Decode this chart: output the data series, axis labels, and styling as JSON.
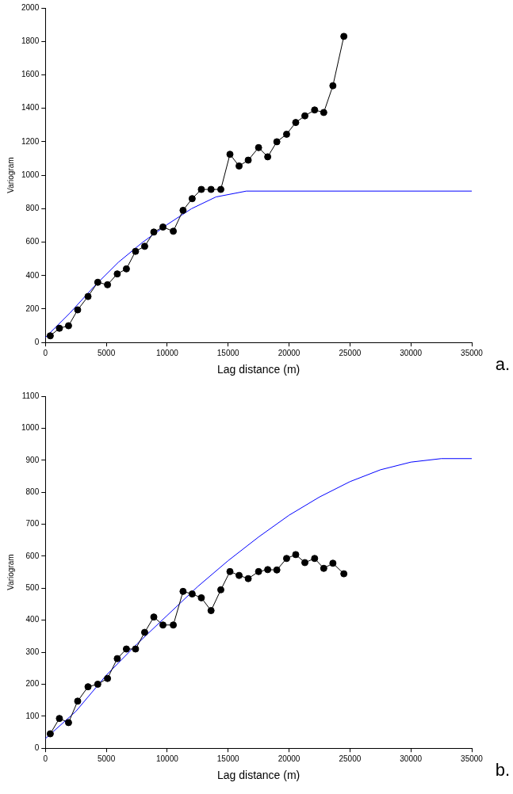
{
  "chart_data": [
    {
      "type": "line",
      "xlabel": "Lag distance (m)",
      "ylabel": "Variogram",
      "annotations": [
        "a."
      ],
      "xlim": [
        0,
        35000
      ],
      "ylim": [
        0,
        2000
      ],
      "xticks": [
        0,
        5000,
        10000,
        15000,
        20000,
        25000,
        30000,
        35000
      ],
      "yticks": [
        0,
        200,
        400,
        600,
        800,
        1000,
        1200,
        1400,
        1600,
        1800,
        2000
      ],
      "grid": false,
      "legend": false,
      "series": [
        {
          "type": "line",
          "color": "#000000",
          "marker": "circle",
          "x": [
            400,
            1150,
            1900,
            2650,
            3500,
            4300,
            5100,
            5900,
            6650,
            7400,
            8150,
            8900,
            9650,
            10500,
            11300,
            12050,
            12800,
            13600,
            14400,
            15150,
            15900,
            16650,
            17500,
            18250,
            19000,
            19800,
            20550,
            21300,
            22100,
            22850,
            23600,
            24500
          ],
          "values": [
            40,
            85,
            100,
            195,
            275,
            360,
            345,
            410,
            440,
            545,
            575,
            660,
            690,
            665,
            790,
            860,
            915,
            915,
            915,
            1125,
            1055,
            1090,
            1165,
            1110,
            1200,
            1245,
            1315,
            1355,
            1390,
            1375,
            1535,
            1830
          ]
        },
        {
          "type": "line",
          "color": "#0000ff",
          "marker": "none",
          "x": [
            0,
            2000,
            4000,
            6000,
            8000,
            10000,
            12000,
            14000,
            16500,
            35000
          ],
          "values": [
            30,
            175,
            335,
            480,
            600,
            705,
            800,
            870,
            905,
            905
          ]
        }
      ]
    },
    {
      "type": "line",
      "xlabel": "Lag distance (m)",
      "ylabel": "Variogram",
      "annotations": [
        "b."
      ],
      "xlim": [
        0,
        35000
      ],
      "ylim": [
        0,
        1100
      ],
      "xticks": [
        0,
        5000,
        10000,
        15000,
        20000,
        25000,
        30000,
        35000
      ],
      "yticks": [
        0,
        100,
        200,
        300,
        400,
        500,
        600,
        700,
        800,
        900,
        1000,
        1100
      ],
      "grid": false,
      "legend": false,
      "series": [
        {
          "type": "line",
          "color": "#000000",
          "marker": "circle",
          "x": [
            400,
            1150,
            1900,
            2650,
            3500,
            4300,
            5100,
            5900,
            6650,
            7400,
            8150,
            8900,
            9650,
            10500,
            11300,
            12050,
            12800,
            13600,
            14400,
            15150,
            15900,
            16650,
            17500,
            18250,
            19000,
            19800,
            20550,
            21300,
            22100,
            22850,
            23600,
            24500
          ],
          "values": [
            45,
            93,
            80,
            147,
            192,
            200,
            218,
            280,
            310,
            310,
            362,
            410,
            385,
            385,
            490,
            482,
            470,
            430,
            495,
            552,
            540,
            530,
            552,
            558,
            557,
            593,
            605,
            580,
            593,
            562,
            578,
            545
          ]
        },
        {
          "type": "line",
          "color": "#0000ff",
          "marker": "none",
          "x": [
            0,
            2500,
            5000,
            7500,
            10000,
            12500,
            15000,
            17500,
            20000,
            22500,
            25000,
            27500,
            30000,
            32500,
            35000
          ],
          "values": [
            30,
            115,
            228,
            325,
            415,
            505,
            586,
            660,
            728,
            785,
            833,
            870,
            894,
            905,
            905
          ]
        }
      ]
    }
  ]
}
